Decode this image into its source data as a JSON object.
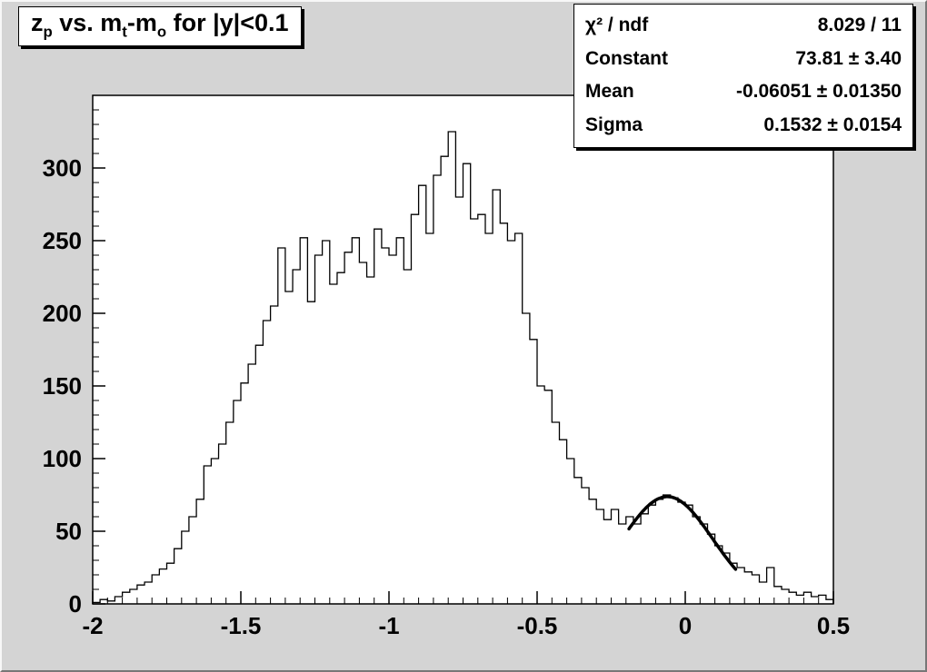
{
  "canvas": {
    "background": "#d4d4d4",
    "frame_background": "#ffffff",
    "foreground": "#000000"
  },
  "title": {
    "seg0": "z",
    "seg1": "p",
    "seg2": " vs. m",
    "seg3": "t",
    "seg4": "-m",
    "seg5": "o",
    "seg6": " for |y|<0.1"
  },
  "stats": {
    "rows": [
      {
        "label": "χ² / ndf",
        "value": "8.029 / 11"
      },
      {
        "label": "Constant",
        "value": "73.81 ± 3.40"
      },
      {
        "label": "Mean",
        "value": "-0.06051 ± 0.01350"
      },
      {
        "label": "Sigma",
        "value": "0.1532 ± 0.0154"
      }
    ]
  },
  "chart_data": {
    "type": "bar",
    "subtype": "step-histogram",
    "title": "z_p vs. m_t-m_o for |y|<0.1",
    "xlabel": "",
    "ylabel": "",
    "xlim": [
      -2.0,
      0.5
    ],
    "ylim": [
      0,
      350
    ],
    "bin_width": 0.025,
    "x_ticks": [
      -2,
      -1.5,
      -1,
      -0.5,
      0,
      0.5
    ],
    "x_tick_labels": [
      "-2",
      "-1.5",
      "-1",
      "-0.5",
      "0",
      "0.5"
    ],
    "x_minor_step": 0.05,
    "y_ticks": [
      0,
      50,
      100,
      150,
      200,
      250,
      300
    ],
    "y_minor_step": 10,
    "grid": false,
    "legend": false,
    "line_color": "#000000",
    "fit_color": "#000000",
    "frame_color": "#ffffff",
    "bins": [
      1,
      3,
      2,
      5,
      8,
      10,
      13,
      15,
      20,
      24,
      28,
      38,
      50,
      60,
      72,
      95,
      100,
      110,
      125,
      140,
      152,
      165,
      178,
      195,
      205,
      245,
      215,
      230,
      252,
      208,
      240,
      250,
      220,
      228,
      242,
      252,
      235,
      225,
      258,
      245,
      240,
      252,
      230,
      268,
      288,
      255,
      295,
      308,
      325,
      280,
      303,
      265,
      268,
      255,
      285,
      262,
      250,
      255,
      200,
      182,
      150,
      147,
      125,
      113,
      100,
      87,
      80,
      72,
      65,
      58,
      65,
      55,
      60,
      55,
      62,
      68,
      72,
      75,
      73,
      70,
      68,
      60,
      55,
      48,
      40,
      35,
      28,
      25,
      22,
      20,
      15,
      25,
      12,
      10,
      8,
      6,
      8,
      5,
      6,
      3
    ],
    "fit": {
      "model": "gaussian",
      "constant": 73.81,
      "mean": -0.06051,
      "sigma": 0.1532,
      "chi2_ndf": "8.029 / 11",
      "range": [
        -0.19,
        0.17
      ]
    }
  }
}
